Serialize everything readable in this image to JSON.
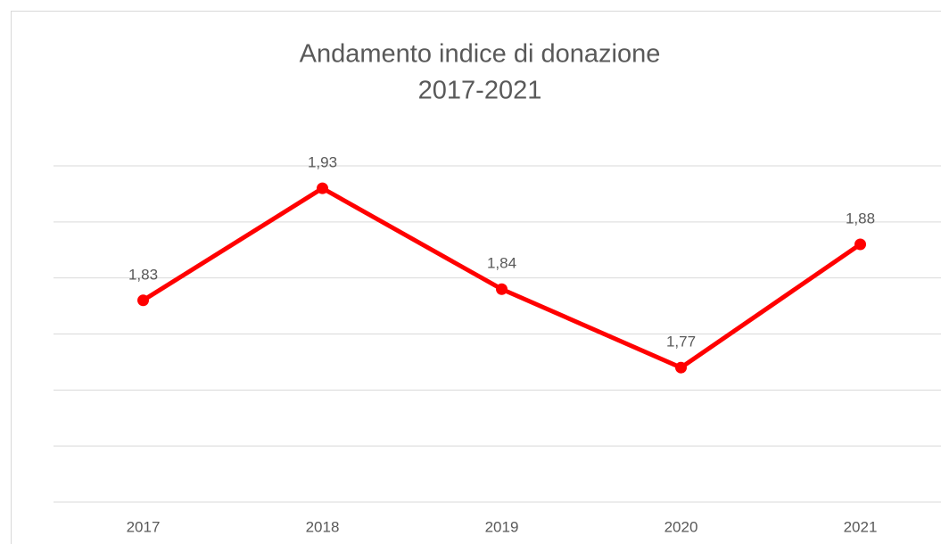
{
  "chart_data": {
    "type": "line",
    "title": "Andamento indice di donazione",
    "subtitle": "2017-2021",
    "categories": [
      "2017",
      "2018",
      "2019",
      "2020",
      "2021"
    ],
    "series": [
      {
        "name": "Indice di donazione",
        "color": "#ff0000",
        "values": [
          1.83,
          1.93,
          1.84,
          1.77,
          1.88
        ],
        "value_labels": [
          "1,83",
          "1,93",
          "1,84",
          "1,77",
          "1,88"
        ]
      }
    ],
    "ylim": [
      1.65,
      1.95
    ],
    "yticks": [
      1.65,
      1.7,
      1.75,
      1.8,
      1.85,
      1.9,
      1.95
    ],
    "grid": true
  }
}
